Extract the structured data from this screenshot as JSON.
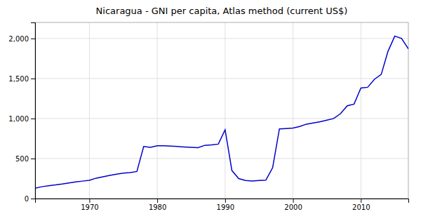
{
  "chart_data": {
    "type": "line",
    "title": "Nicaragua - GNI per capita, Atlas method (current US$)",
    "x": [
      1962,
      1963,
      1964,
      1965,
      1966,
      1967,
      1968,
      1969,
      1970,
      1971,
      1972,
      1973,
      1974,
      1975,
      1976,
      1977,
      1978,
      1979,
      1980,
      1981,
      1982,
      1983,
      1984,
      1985,
      1986,
      1987,
      1988,
      1989,
      1990,
      1991,
      1992,
      1993,
      1994,
      1995,
      1996,
      1997,
      1998,
      1999,
      2000,
      2001,
      2002,
      2003,
      2004,
      2005,
      2006,
      2007,
      2008,
      2009,
      2010,
      2011,
      2012,
      2013,
      2014,
      2015,
      2016,
      2017
    ],
    "values": [
      130,
      148,
      160,
      170,
      182,
      196,
      208,
      218,
      228,
      255,
      272,
      290,
      305,
      318,
      325,
      338,
      650,
      640,
      660,
      660,
      655,
      650,
      645,
      640,
      635,
      665,
      670,
      680,
      860,
      350,
      250,
      225,
      220,
      225,
      230,
      385,
      870,
      875,
      880,
      900,
      930,
      945,
      960,
      980,
      1000,
      1060,
      1160,
      1180,
      1380,
      1390,
      1490,
      1550,
      1840,
      2030,
      2000,
      1870
    ],
    "color": "#0000CC",
    "xlim": [
      1962,
      2017
    ],
    "ylim": [
      0,
      2200
    ],
    "xticks": [
      1970,
      1980,
      1990,
      2000,
      2010
    ],
    "yticks": [
      0,
      500,
      {
        "value": 1000,
        "label": "1,000"
      },
      {
        "value": 1500,
        "label": "1,500"
      },
      {
        "value": 2000,
        "label": "2,000"
      }
    ],
    "grid": true
  }
}
